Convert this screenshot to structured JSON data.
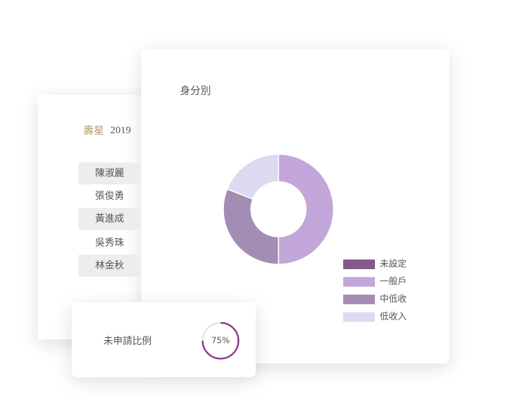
{
  "birthday_card": {
    "title_highlight": "壽星",
    "year": "2019",
    "names": [
      "陳淑麗",
      "張俊勇",
      "黃進成",
      "吳秀珠",
      "林金秋"
    ]
  },
  "chart_data": {
    "type": "donut",
    "title": "身分別",
    "categories": [
      "未設定",
      "一般戶",
      "中低收",
      "低收入"
    ],
    "values": [
      0,
      50,
      31,
      19
    ],
    "colors": [
      "#835a8a",
      "#c3a6da",
      "#a48db5",
      "#dcdaf0"
    ],
    "legend": "bottom-right"
  },
  "ratio_card": {
    "label": "未申請比例",
    "value": 75,
    "value_label": "75%",
    "color": "#8e3a8e"
  }
}
